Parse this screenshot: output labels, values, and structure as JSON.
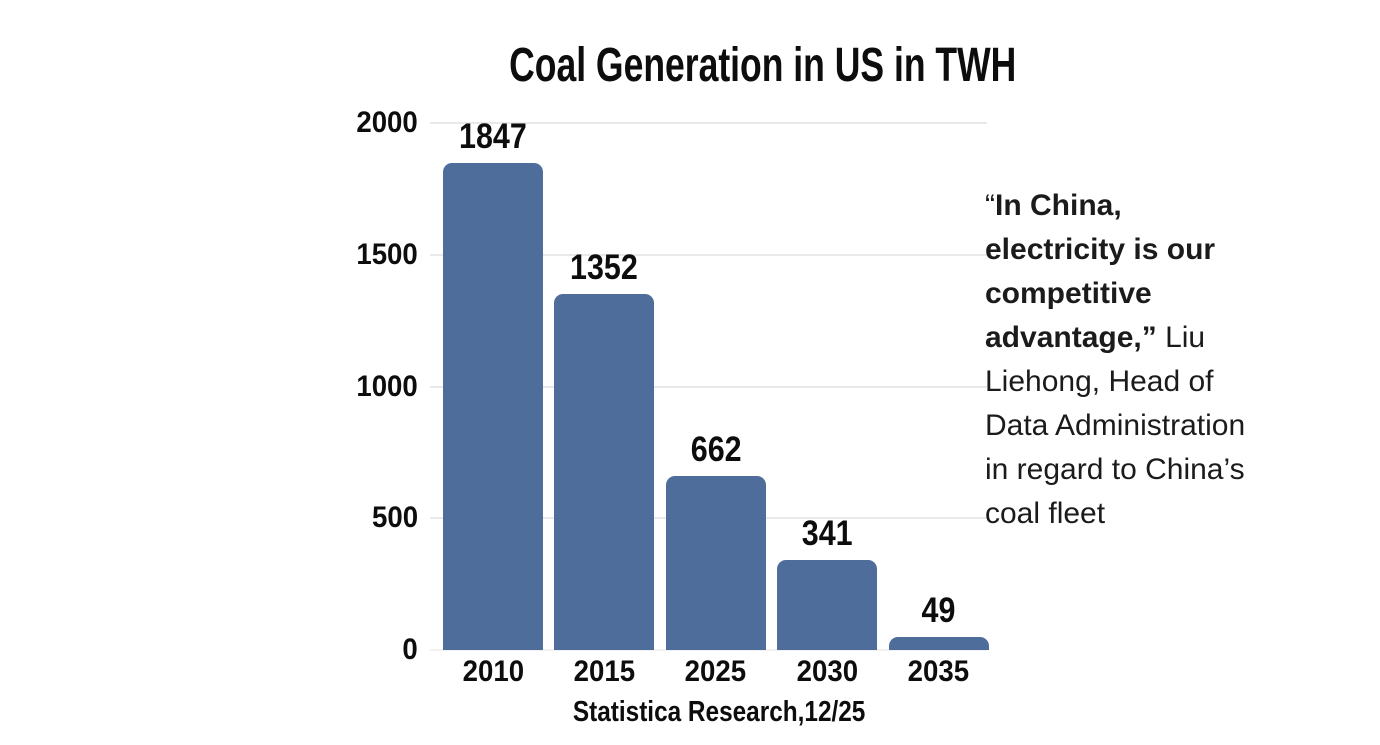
{
  "chart_data": {
    "type": "bar",
    "title": "Coal Generation in US in TWH",
    "categories": [
      "2010",
      "2015",
      "2025",
      "2030",
      "2035"
    ],
    "values": [
      1847,
      1352,
      662,
      341,
      49
    ],
    "xlabel": "",
    "ylabel": "",
    "ylim": [
      0,
      2000
    ],
    "yticks": [
      0,
      500,
      1000,
      1500,
      2000
    ],
    "grid": true,
    "legend": false,
    "source": "Statistica Research,12/25",
    "colors": {
      "bar": "#4e6d9b",
      "gridline": "#e9e9e9",
      "baseline": "#f1f1f1",
      "label_text": "#0d0d0d"
    }
  },
  "quote": {
    "full_text": "“In China, electricity is our competitive advantage,” Liu Liehong, Head of Data Administration in regard to China’s coal fleet",
    "text_color": "#1b1b1b",
    "lines": [
      {
        "segments": [
          {
            "text": "“",
            "bold": false
          },
          {
            "text": "In China,",
            "bold": true
          }
        ]
      },
      {
        "segments": [
          {
            "text": "electricity is our",
            "bold": true
          }
        ]
      },
      {
        "segments": [
          {
            "text": "competitive",
            "bold": true
          }
        ]
      },
      {
        "segments": [
          {
            "text": "advantage,”",
            "bold": true
          },
          {
            "text": " Liu",
            "bold": false
          }
        ]
      },
      {
        "segments": [
          {
            "text": "Liehong, Head of",
            "bold": false
          }
        ]
      },
      {
        "segments": [
          {
            "text": "Data Administration",
            "bold": false
          }
        ]
      },
      {
        "segments": [
          {
            "text": "in regard to China’s",
            "bold": false
          }
        ]
      },
      {
        "segments": [
          {
            "text": "coal fleet",
            "bold": false
          }
        ]
      }
    ]
  }
}
